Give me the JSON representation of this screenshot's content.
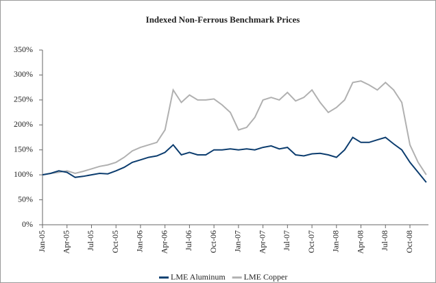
{
  "chart_data": {
    "type": "line",
    "title": "Indexed Non-Ferrous Benchmark Prices",
    "categories": [
      "Jan-05",
      null,
      null,
      "Apr-05",
      null,
      null,
      "Jul-05",
      null,
      null,
      "Oct-05",
      null,
      null,
      "Jan-06",
      null,
      null,
      "Apr-06",
      null,
      null,
      "Jul-06",
      null,
      null,
      "Oct-06",
      null,
      null,
      "Jan-07",
      null,
      null,
      "Apr-07",
      null,
      null,
      "Jul-07",
      null,
      null,
      "Oct-07",
      null,
      null,
      "Jan-08",
      null,
      null,
      "Apr-08",
      null,
      null,
      "Jul-08",
      null,
      null,
      "Oct-08",
      null,
      null
    ],
    "series": [
      {
        "name": "LME Aluminum",
        "color": "#0b3c6e",
        "values": [
          100,
          103,
          108,
          105,
          95,
          97,
          100,
          103,
          102,
          108,
          115,
          125,
          130,
          135,
          138,
          145,
          160,
          140,
          145,
          140,
          140,
          150,
          150,
          152,
          150,
          152,
          150,
          155,
          158,
          152,
          155,
          140,
          138,
          142,
          143,
          140,
          135,
          150,
          175,
          165,
          165,
          170,
          175,
          162,
          150,
          125,
          105,
          85
        ]
      },
      {
        "name": "LME Copper",
        "color": "#b0b0b0",
        "values": [
          100,
          103,
          105,
          108,
          103,
          107,
          112,
          117,
          120,
          125,
          135,
          148,
          155,
          160,
          165,
          190,
          270,
          245,
          260,
          250,
          250,
          252,
          240,
          225,
          190,
          195,
          215,
          250,
          255,
          250,
          265,
          248,
          255,
          270,
          245,
          225,
          235,
          250,
          285,
          288,
          280,
          270,
          285,
          270,
          245,
          160,
          125,
          100
        ]
      }
    ],
    "ylim": [
      0,
      350
    ],
    "yticks": [
      {
        "value": 0,
        "label": "0%"
      },
      {
        "value": 50,
        "label": "50%"
      },
      {
        "value": 100,
        "label": "100%"
      },
      {
        "value": 150,
        "label": "150%"
      },
      {
        "value": 200,
        "label": "200%"
      },
      {
        "value": 250,
        "label": "250%"
      },
      {
        "value": 300,
        "label": "300%"
      },
      {
        "value": 350,
        "label": "350%"
      }
    ],
    "legend": "bottom"
  }
}
